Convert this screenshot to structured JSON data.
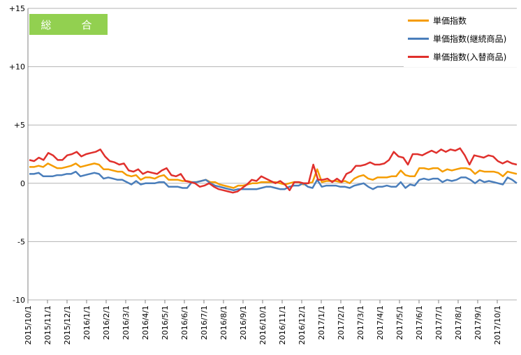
{
  "chart_data": {
    "type": "line",
    "title": "総　合",
    "yticks": [
      "+15",
      "+10",
      "+5",
      "0",
      "-5",
      "-10"
    ],
    "ylim": [
      -10,
      15
    ],
    "x_labels": [
      "2015/10/1",
      "2015/11/1",
      "2015/12/1",
      "2016/1/1",
      "2016/2/1",
      "2016/3/1",
      "2016/4/1",
      "2016/5/1",
      "2016/6/1",
      "2016/7/1",
      "2016/8/1",
      "2016/9/1",
      "2016/10/1",
      "2016/11/1",
      "2016/12/1",
      "2017/1/1",
      "2017/2/1",
      "2017/3/1",
      "2017/4/1",
      "2017/5/1",
      "2017/6/1",
      "2017/7/1",
      "2017/8/1",
      "2017/9/1",
      "2017/10/1"
    ],
    "grid": true,
    "legend_position": "top-right",
    "series": [
      {
        "name": "単価指数",
        "color": "#f59c00",
        "values": [
          1.4,
          1.4,
          1.5,
          1.4,
          1.7,
          1.5,
          1.3,
          1.3,
          1.4,
          1.5,
          1.7,
          1.4,
          1.5,
          1.6,
          1.7,
          1.6,
          1.2,
          1.2,
          1.1,
          1.0,
          1.0,
          0.7,
          0.6,
          0.7,
          0.3,
          0.5,
          0.5,
          0.4,
          0.6,
          0.7,
          0.3,
          0.3,
          0.3,
          0.2,
          0.2,
          0.1,
          0.1,
          0.2,
          0.3,
          0.1,
          0.1,
          -0.1,
          -0.2,
          -0.3,
          -0.4,
          -0.2,
          -0.2,
          -0.1,
          0.0,
          0.0,
          0.1,
          0.1,
          0.1,
          0.1,
          0.0,
          -0.1,
          0.0,
          0.1,
          0.1,
          -0.1,
          0.0,
          0.1,
          1.2,
          0.1,
          0.2,
          0.2,
          0.2,
          0.1,
          0.2,
          0.0,
          0.4,
          0.6,
          0.7,
          0.4,
          0.3,
          0.5,
          0.5,
          0.5,
          0.6,
          0.6,
          1.1,
          0.7,
          0.6,
          0.6,
          1.3,
          1.3,
          1.2,
          1.3,
          1.3,
          1.0,
          1.2,
          1.1,
          1.2,
          1.3,
          1.3,
          1.2,
          0.8,
          1.1,
          1.0,
          1.0,
          1.0,
          0.9,
          0.6,
          1.0,
          0.9,
          0.8
        ]
      },
      {
        "name": "単価指数(継続商品)",
        "color": "#4a7ebb",
        "values": [
          0.8,
          0.8,
          0.9,
          0.6,
          0.6,
          0.6,
          0.7,
          0.7,
          0.8,
          0.8,
          1.0,
          0.6,
          0.7,
          0.8,
          0.9,
          0.8,
          0.4,
          0.5,
          0.4,
          0.3,
          0.3,
          0.1,
          -0.1,
          0.2,
          -0.1,
          0.0,
          0.0,
          0.0,
          0.1,
          0.1,
          -0.3,
          -0.3,
          -0.3,
          -0.4,
          -0.4,
          0.1,
          0.1,
          0.2,
          0.3,
          0.0,
          -0.2,
          -0.3,
          -0.4,
          -0.5,
          -0.6,
          -0.5,
          -0.5,
          -0.5,
          -0.5,
          -0.5,
          -0.4,
          -0.3,
          -0.3,
          -0.4,
          -0.5,
          -0.5,
          -0.3,
          -0.2,
          -0.2,
          0.0,
          -0.3,
          -0.4,
          0.3,
          -0.3,
          -0.2,
          -0.2,
          -0.2,
          -0.3,
          -0.3,
          -0.4,
          -0.2,
          -0.1,
          0.0,
          -0.3,
          -0.5,
          -0.3,
          -0.3,
          -0.2,
          -0.3,
          -0.3,
          0.1,
          -0.4,
          -0.1,
          -0.2,
          0.3,
          0.4,
          0.3,
          0.4,
          0.4,
          0.1,
          0.3,
          0.2,
          0.3,
          0.5,
          0.5,
          0.3,
          0.0,
          0.3,
          0.1,
          0.2,
          0.1,
          0.0,
          -0.1,
          0.5,
          0.3,
          0.0
        ]
      },
      {
        "name": "単価指数(入替商品)",
        "color": "#e0302c",
        "values": [
          2.0,
          1.9,
          2.2,
          2.0,
          2.6,
          2.4,
          2.0,
          2.0,
          2.4,
          2.5,
          2.7,
          2.3,
          2.5,
          2.6,
          2.7,
          2.9,
          2.3,
          1.9,
          1.8,
          1.6,
          1.7,
          1.1,
          1.0,
          1.2,
          0.8,
          1.0,
          0.9,
          0.8,
          1.1,
          1.3,
          0.7,
          0.6,
          0.8,
          0.2,
          0.1,
          0.0,
          -0.3,
          -0.2,
          0.0,
          -0.3,
          -0.5,
          -0.6,
          -0.7,
          -0.8,
          -0.7,
          -0.4,
          -0.1,
          0.3,
          0.2,
          0.6,
          0.4,
          0.2,
          0.0,
          0.2,
          -0.1,
          -0.6,
          0.1,
          0.1,
          0.0,
          0.0,
          1.6,
          0.3,
          0.3,
          0.4,
          0.1,
          0.4,
          0.1,
          0.8,
          1.0,
          1.5,
          1.5,
          1.6,
          1.8,
          1.6,
          1.6,
          1.7,
          2.0,
          2.7,
          2.3,
          2.2,
          1.6,
          2.5,
          2.5,
          2.4,
          2.6,
          2.8,
          2.6,
          2.9,
          2.7,
          2.9,
          2.8,
          3.0,
          2.4,
          1.6,
          2.4,
          2.3,
          2.2,
          2.4,
          2.3,
          1.9,
          1.7,
          1.9,
          1.7,
          1.6
        ]
      }
    ]
  }
}
